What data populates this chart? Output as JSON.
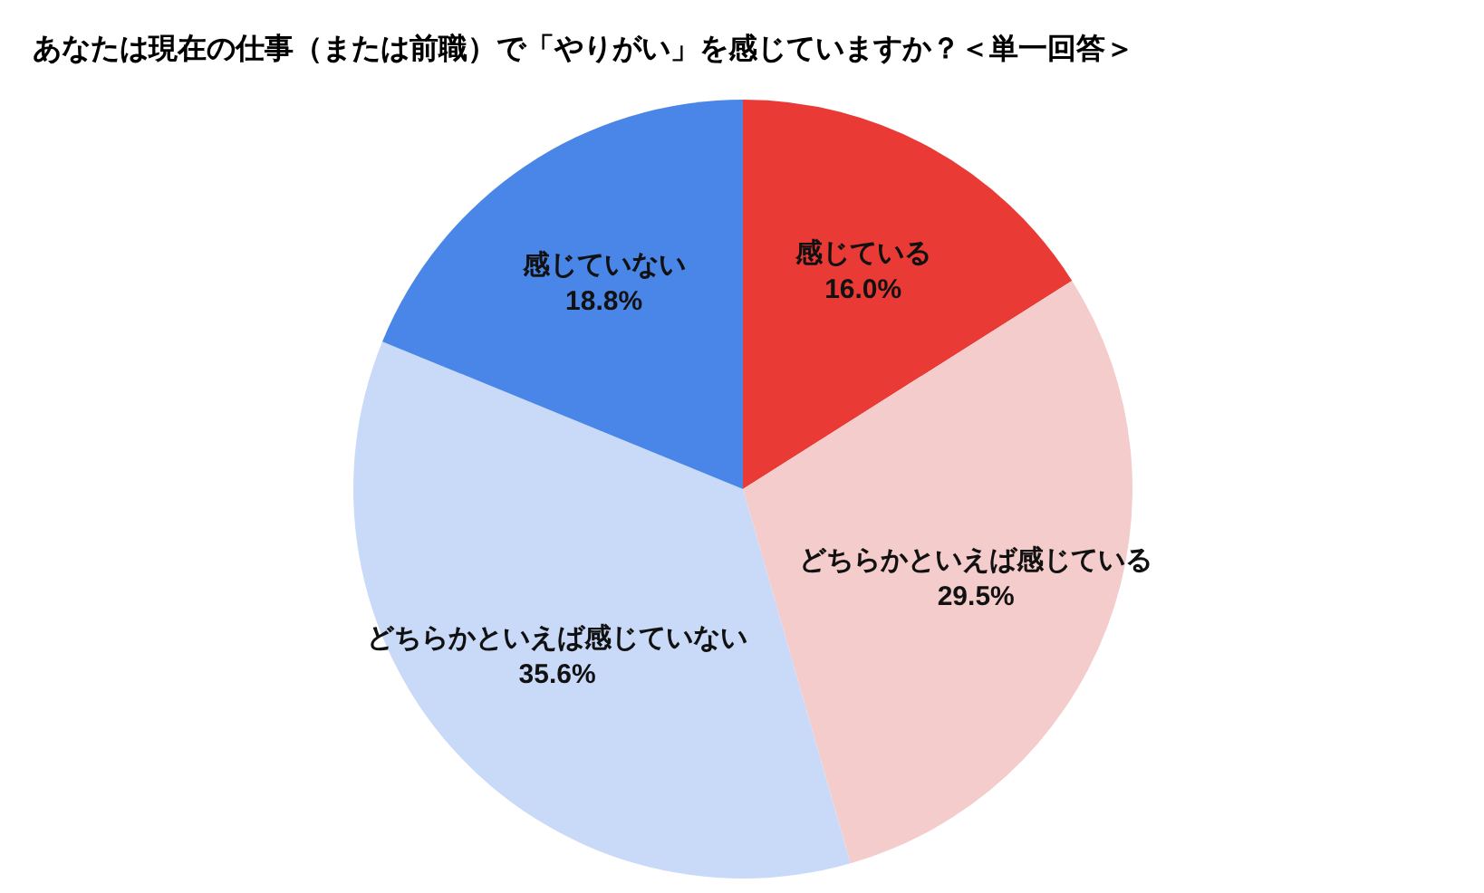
{
  "chart_data": {
    "type": "pie",
    "title": "あなたは現在の仕事（または前職）で「やりがい」を感じていますか？＜単一回答＞",
    "categories": [
      "感じている",
      "どちらかといえば感じている",
      "どちらかといえば感じていない",
      "感じていない"
    ],
    "values": [
      16.0,
      29.5,
      35.6,
      18.8
    ],
    "value_labels": [
      "16.0%",
      "29.5%",
      "35.6%",
      "18.8%"
    ],
    "colors": [
      "#ea3a35",
      "#f4cccc",
      "#c9daf8",
      "#4a86e8"
    ]
  }
}
